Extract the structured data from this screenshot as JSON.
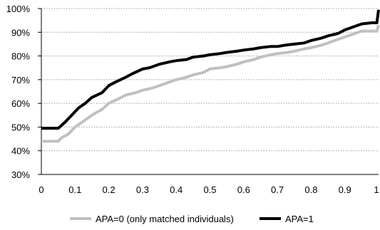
{
  "chart_data": {
    "type": "line",
    "title": "",
    "xlabel": "",
    "ylabel": "",
    "xlim": [
      0,
      1
    ],
    "ylim": [
      0.3,
      1.0
    ],
    "x_ticks": [
      0,
      0.1,
      0.2,
      0.3,
      0.4,
      0.5,
      0.6,
      0.7,
      0.8,
      0.9,
      1
    ],
    "x_tick_labels": [
      "0",
      "0.1",
      "0.2",
      "0.3",
      "0.4",
      "0.5",
      "0.6",
      "0.7",
      "0.8",
      "0.9",
      "1"
    ],
    "y_ticks": [
      0.3,
      0.4,
      0.5,
      0.6,
      0.7,
      0.8,
      0.9,
      1.0
    ],
    "y_tick_labels": [
      "30%",
      "40%",
      "50%",
      "60%",
      "70%",
      "80%",
      "90%",
      "100%"
    ],
    "grid": "horizontal dotted",
    "legend_position": "bottom",
    "series": [
      {
        "name": "APA=0 (only matched individuals)",
        "color": "#c0c0c0",
        "x": [
          0,
          0.05,
          0.06,
          0.08,
          0.1,
          0.12,
          0.15,
          0.18,
          0.2,
          0.23,
          0.25,
          0.28,
          0.3,
          0.33,
          0.35,
          0.38,
          0.4,
          0.43,
          0.45,
          0.48,
          0.5,
          0.53,
          0.55,
          0.58,
          0.6,
          0.63,
          0.65,
          0.68,
          0.7,
          0.73,
          0.75,
          0.78,
          0.8,
          0.83,
          0.85,
          0.88,
          0.9,
          0.93,
          0.95,
          0.98,
          0.995,
          1.0
        ],
        "y": [
          0.44,
          0.44,
          0.455,
          0.47,
          0.5,
          0.52,
          0.55,
          0.575,
          0.6,
          0.62,
          0.635,
          0.645,
          0.655,
          0.665,
          0.675,
          0.69,
          0.7,
          0.71,
          0.72,
          0.73,
          0.745,
          0.75,
          0.755,
          0.765,
          0.775,
          0.785,
          0.795,
          0.805,
          0.81,
          0.815,
          0.82,
          0.83,
          0.835,
          0.845,
          0.855,
          0.87,
          0.88,
          0.895,
          0.905,
          0.905,
          0.905,
          0.93
        ]
      },
      {
        "name": "APA=1",
        "color": "#000000",
        "x": [
          0,
          0.05,
          0.07,
          0.09,
          0.11,
          0.13,
          0.15,
          0.18,
          0.2,
          0.22,
          0.25,
          0.27,
          0.3,
          0.32,
          0.35,
          0.38,
          0.4,
          0.43,
          0.45,
          0.48,
          0.5,
          0.53,
          0.55,
          0.58,
          0.6,
          0.63,
          0.65,
          0.68,
          0.7,
          0.72,
          0.75,
          0.78,
          0.8,
          0.83,
          0.85,
          0.88,
          0.9,
          0.92,
          0.95,
          0.98,
          0.995,
          1.0
        ],
        "y": [
          0.495,
          0.495,
          0.52,
          0.55,
          0.58,
          0.6,
          0.625,
          0.645,
          0.675,
          0.69,
          0.71,
          0.725,
          0.745,
          0.75,
          0.765,
          0.775,
          0.78,
          0.785,
          0.795,
          0.8,
          0.805,
          0.81,
          0.815,
          0.82,
          0.825,
          0.83,
          0.835,
          0.84,
          0.84,
          0.845,
          0.85,
          0.855,
          0.865,
          0.875,
          0.885,
          0.895,
          0.91,
          0.92,
          0.935,
          0.94,
          0.94,
          0.995
        ]
      }
    ]
  }
}
